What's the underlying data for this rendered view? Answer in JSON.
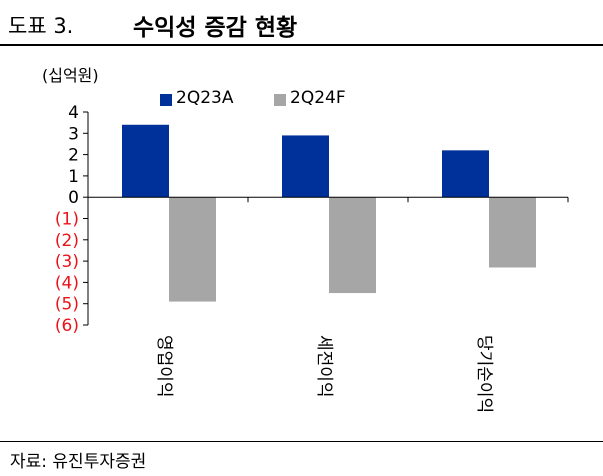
{
  "figure": {
    "label": "도표 3.",
    "title": "수익성 증감 현황",
    "unit": "(십억원)",
    "source": "자료: 유진투자증권"
  },
  "colors": {
    "series_2q23a": "#00309a",
    "series_2q24f": "#a6a6a6",
    "negative_label": "#e8141a",
    "axis": "#000000"
  },
  "chart_data": {
    "type": "bar",
    "title": "수익성 증감 현황",
    "xlabel": "",
    "ylabel": "(십억원)",
    "categories": [
      "영업이익",
      "세전이익",
      "당기순이익"
    ],
    "series": [
      {
        "name": "2Q23A",
        "values": [
          3.4,
          2.9,
          2.2
        ]
      },
      {
        "name": "2Q24F",
        "values": [
          -4.9,
          -4.5,
          -3.3
        ]
      }
    ],
    "ylim": [
      -6,
      4
    ],
    "yticks": [
      4,
      3,
      2,
      1,
      0,
      -1,
      -2,
      -3,
      -4,
      -5,
      -6
    ],
    "ytick_labels": [
      "4",
      "3",
      "2",
      "1",
      "0",
      "(1)",
      "(2)",
      "(3)",
      "(4)",
      "(5)",
      "(6)"
    ],
    "legend": "top",
    "grid": false
  }
}
